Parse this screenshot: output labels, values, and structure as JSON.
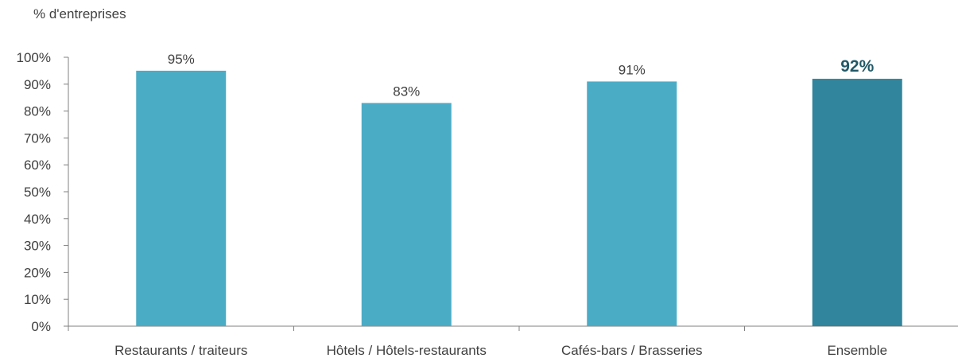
{
  "chart_data": {
    "type": "bar",
    "title": "",
    "ylabel": "% d'entreprises",
    "xlabel": "",
    "categories": [
      "Restaurants / traiteurs",
      "Hôtels / Hôtels-restaurants",
      "Cafés-bars / Brasseries",
      "Ensemble"
    ],
    "values": [
      95,
      83,
      91,
      92
    ],
    "data_labels": [
      "95%",
      "83%",
      "91%",
      "92%"
    ],
    "ylim": [
      0,
      100
    ],
    "yticks": [
      "0%",
      "10%",
      "20%",
      "30%",
      "40%",
      "50%",
      "60%",
      "70%",
      "80%",
      "90%",
      "100%"
    ],
    "grid": false,
    "legend": "none",
    "colors": {
      "bar": "#4BACC6",
      "highlight_bar": "#31859C",
      "highlight_label": "#215968",
      "axis": "#808080",
      "text": "#404040"
    },
    "highlight_index": 3
  }
}
